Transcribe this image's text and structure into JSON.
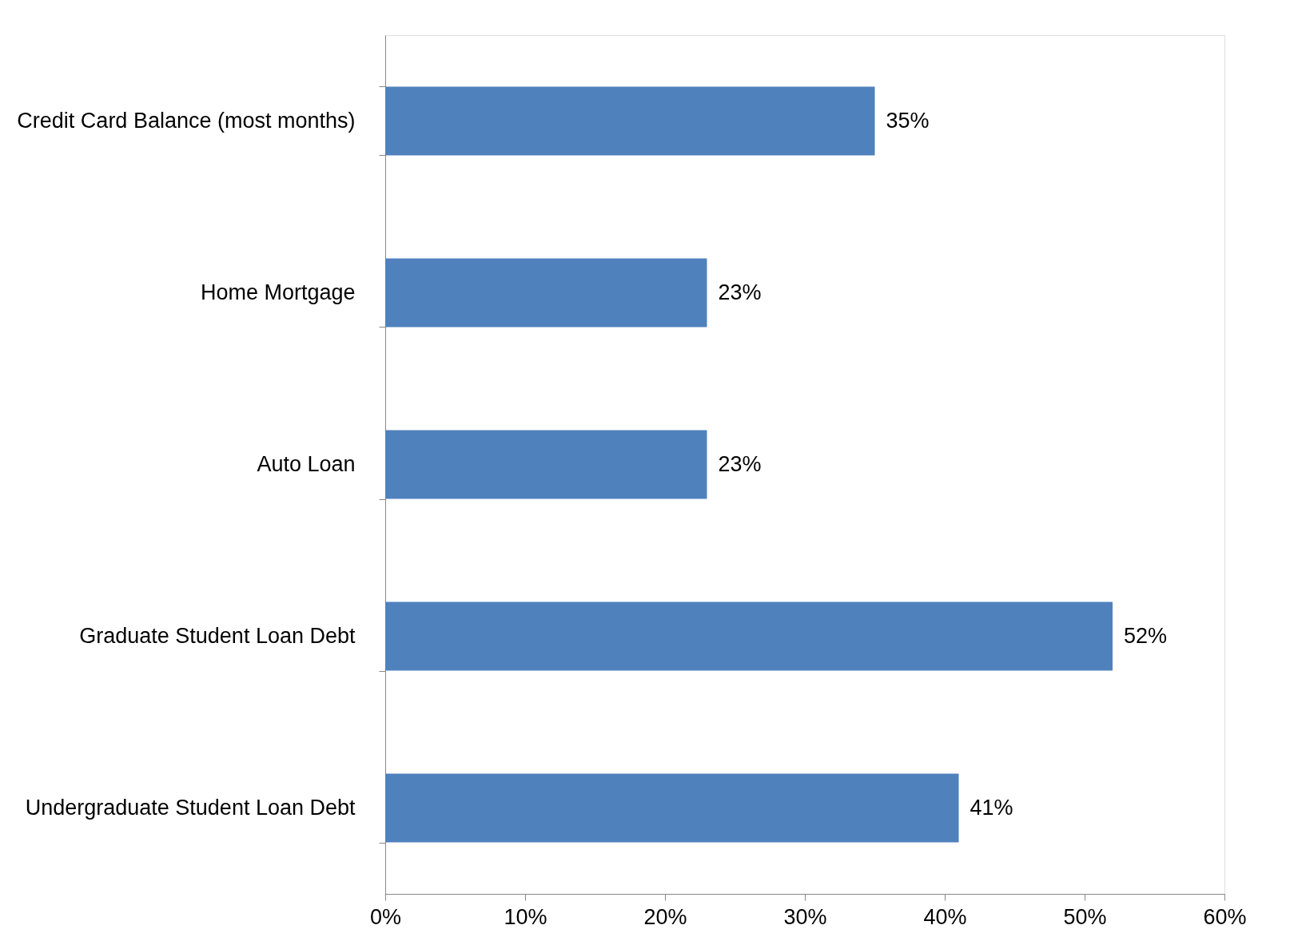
{
  "chart_data": {
    "type": "bar",
    "orientation": "horizontal",
    "categories": [
      "Credit Card Balance (most months)",
      "Home Mortgage",
      "Auto Loan",
      "Graduate Student Loan Debt",
      "Undergraduate Student Loan Debt"
    ],
    "values": [
      35,
      23,
      23,
      52,
      41
    ],
    "value_labels": [
      "35%",
      "23%",
      "23%",
      "52%",
      "41%"
    ],
    "color": "#4f81bd",
    "xlim": [
      0,
      60
    ],
    "xticks": [
      {
        "value": 0,
        "label": "0%"
      },
      {
        "value": 10,
        "label": "10%"
      },
      {
        "value": 20,
        "label": "20%"
      },
      {
        "value": 30,
        "label": "30%"
      },
      {
        "value": 40,
        "label": "40%"
      },
      {
        "value": 50,
        "label": "50%"
      },
      {
        "value": 60,
        "label": "60%"
      }
    ],
    "grid": false
  }
}
